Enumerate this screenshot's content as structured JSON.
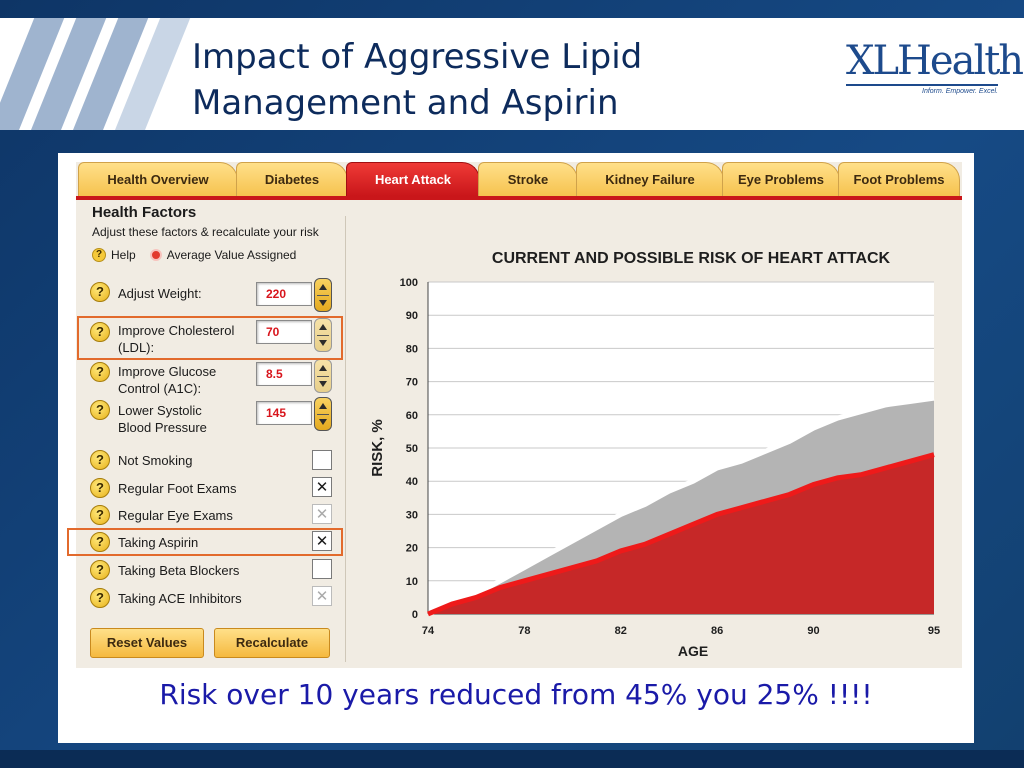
{
  "slide": {
    "title_line1": "Impact of Aggressive Lipid",
    "title_line2": "Management and Aspirin",
    "logo_text": "XLHealth",
    "logo_tagline": "Inform. Empower. Excel.",
    "caption": "Risk over 10 years reduced from 45% you 25% !!!!"
  },
  "tabs": [
    {
      "label": "Health Overview"
    },
    {
      "label": "Diabetes"
    },
    {
      "label": "Heart Attack",
      "active": true
    },
    {
      "label": "Stroke"
    },
    {
      "label": "Kidney Failure"
    },
    {
      "label": "Eye Problems"
    },
    {
      "label": "Foot Problems"
    }
  ],
  "health_factors": {
    "title": "Health Factors",
    "subtitle": "Adjust these factors & recalculate your risk",
    "help_label": "Help",
    "avg_label": "Average Value Assigned",
    "inputs": [
      {
        "label_l1": "Adjust Weight:",
        "label_l2": "",
        "value": "220"
      },
      {
        "label_l1": "Improve Cholesterol",
        "label_l2": "(LDL):",
        "value": "70"
      },
      {
        "label_l1": "Improve Glucose",
        "label_l2": "Control (A1C):",
        "value": "8.5"
      },
      {
        "label_l1": "Lower Systolic",
        "label_l2": "Blood Pressure",
        "value": "145"
      }
    ],
    "checks": [
      {
        "label": "Not Smoking",
        "checked": false,
        "enabled": true
      },
      {
        "label": "Regular Foot Exams",
        "checked": true,
        "enabled": true
      },
      {
        "label": "Regular Eye Exams",
        "checked": true,
        "enabled": false
      },
      {
        "label": "Taking Aspirin",
        "checked": true,
        "enabled": true
      },
      {
        "label": "Taking Beta Blockers",
        "checked": false,
        "enabled": true
      },
      {
        "label": "Taking ACE Inhibitors",
        "checked": true,
        "enabled": false
      }
    ],
    "reset_label": "Reset Values",
    "recalc_label": "Recalculate",
    "help_glyph": "?",
    "check_glyph": "✕"
  },
  "chart_data": {
    "type": "area",
    "title": "CURRENT AND POSSIBLE RISK OF HEART ATTACK",
    "xlabel": "AGE",
    "ylabel": "RISK, %",
    "xlim": [
      74,
      95
    ],
    "ylim": [
      0,
      100
    ],
    "xticks": [
      74,
      78,
      82,
      86,
      90,
      95
    ],
    "yticks": [
      0,
      10,
      20,
      30,
      40,
      50,
      60,
      70,
      80,
      90,
      100
    ],
    "grid": true,
    "x": [
      74,
      75,
      76,
      77,
      78,
      79,
      80,
      81,
      82,
      83,
      84,
      85,
      86,
      87,
      88,
      89,
      90,
      91,
      92,
      93,
      94,
      95
    ],
    "series": [
      {
        "values": [
          0,
          3,
          6,
          10,
          14,
          18,
          22,
          26,
          30,
          33,
          37,
          40,
          44,
          46,
          49,
          52,
          56,
          59,
          61,
          63,
          64,
          65
        ],
        "color": "#b4b4b4"
      },
      {
        "values": [
          0,
          3,
          5,
          8,
          10,
          12,
          14,
          16,
          19,
          21,
          24,
          27,
          30,
          32,
          34,
          36,
          39,
          41,
          42,
          44,
          46,
          48
        ],
        "color": "#c62828"
      }
    ]
  },
  "colors": {
    "accent_red": "#c9161a",
    "tab_gold": "#f6c24e",
    "caption_blue": "#1a1aa8",
    "slide_blue": "#123f73"
  }
}
